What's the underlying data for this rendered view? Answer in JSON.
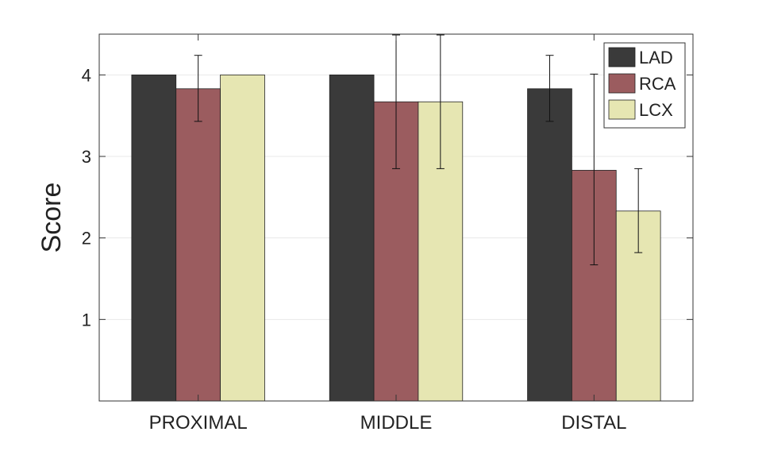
{
  "chart_data": {
    "type": "bar",
    "title": "",
    "xlabel": "",
    "ylabel": "Score",
    "ylim": [
      0,
      4.5
    ],
    "yticks": [
      1,
      2,
      3,
      4
    ],
    "grid": true,
    "legend_position": "top-right",
    "categories": [
      "PROXIMAL",
      "MIDDLE",
      "DISTAL"
    ],
    "series": [
      {
        "name": "LAD",
        "color": "#3a3a3a",
        "values": [
          4.0,
          4.0,
          3.83
        ],
        "error_low": [
          null,
          null,
          3.43
        ],
        "error_high": [
          null,
          null,
          4.24
        ]
      },
      {
        "name": "RCA",
        "color": "#9b5c5f",
        "values": [
          3.83,
          3.67,
          2.83
        ],
        "error_low": [
          3.43,
          2.85,
          1.67
        ],
        "error_high": [
          4.24,
          4.49,
          4.01
        ]
      },
      {
        "name": "LCX",
        "color": "#e6e6b2",
        "values": [
          4.0,
          3.67,
          2.33
        ],
        "error_low": [
          null,
          2.85,
          1.82
        ],
        "error_high": [
          null,
          4.49,
          2.85
        ]
      }
    ]
  }
}
